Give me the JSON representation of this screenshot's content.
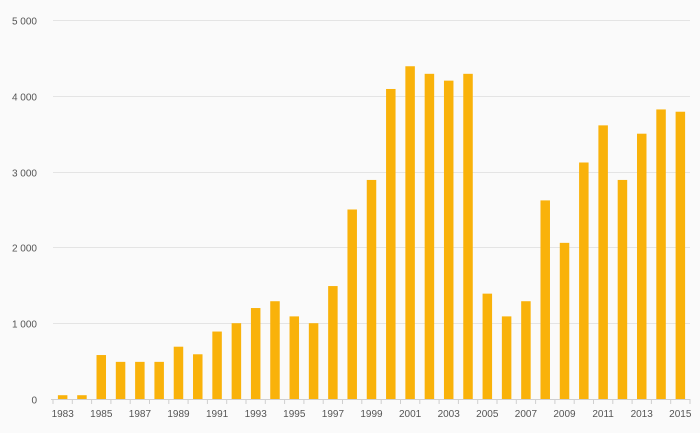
{
  "chart_data": {
    "type": "bar",
    "categories": [
      "1983",
      "1984",
      "1985",
      "1986",
      "1987",
      "1988",
      "1989",
      "1990",
      "1991",
      "1992",
      "1993",
      "1994",
      "1995",
      "1996",
      "1997",
      "1998",
      "1999",
      "2000",
      "2001",
      "2002",
      "2003",
      "2004",
      "2005",
      "2006",
      "2007",
      "2008",
      "2009",
      "2010",
      "2011",
      "2012",
      "2013",
      "2014",
      "2015"
    ],
    "values": [
      50,
      50,
      580,
      490,
      490,
      490,
      690,
      590,
      890,
      1000,
      1200,
      1290,
      1090,
      1000,
      1490,
      2500,
      2890,
      4090,
      4390,
      4290,
      4200,
      4290,
      1390,
      1090,
      1290,
      2620,
      2060,
      3120,
      3610,
      2890,
      3500,
      3820,
      3790
    ],
    "x_tick_labels": [
      "1983",
      "1985",
      "1987",
      "1989",
      "1991",
      "1993",
      "1995",
      "1997",
      "1999",
      "2001",
      "2003",
      "2005",
      "2007",
      "2009",
      "2011",
      "2013",
      "2015"
    ],
    "y_ticks": [
      0,
      1000,
      2000,
      3000,
      4000,
      5000
    ],
    "y_tick_labels": [
      "0",
      "1 000",
      "2 000",
      "3 000",
      "4 000",
      "5 000"
    ],
    "ylim": [
      0,
      5000
    ],
    "title": "",
    "xlabel": "",
    "ylabel": "",
    "grid": true,
    "legend": "none",
    "bar_color": "#f9b20a"
  }
}
